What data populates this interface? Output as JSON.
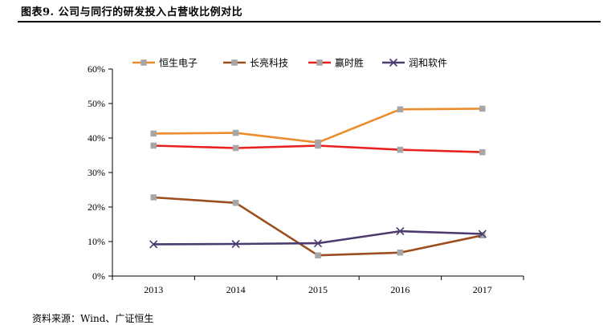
{
  "figure": {
    "title": "图表9. 公司与同行的研发投入占营收比例对比",
    "source": "资料来源：Wind、广证恒生"
  },
  "chart_data": {
    "type": "line",
    "title": "",
    "xlabel": "",
    "ylabel": "",
    "categories": [
      "2013",
      "2014",
      "2015",
      "2016",
      "2017"
    ],
    "ylim": [
      0,
      60
    ],
    "yticks": [
      0,
      10,
      20,
      30,
      40,
      50,
      60
    ],
    "ytick_format": "%",
    "grid": false,
    "legend_position": "top",
    "series": [
      {
        "name": "恒生电子",
        "color": "#ED8C2D",
        "marker": "square",
        "values": [
          41.3,
          41.5,
          38.7,
          48.3,
          48.5
        ]
      },
      {
        "name": "长亮科技",
        "color": "#9C4E1E",
        "marker": "square",
        "values": [
          22.8,
          21.2,
          6.0,
          6.8,
          11.8
        ]
      },
      {
        "name": "赢时胜",
        "color": "#E8201E",
        "marker": "square",
        "values": [
          37.8,
          37.1,
          37.8,
          36.6,
          35.9
        ]
      },
      {
        "name": "润和软件",
        "color": "#4B3B6E",
        "marker": "x",
        "values": [
          9.2,
          9.3,
          9.5,
          13.0,
          12.2
        ]
      }
    ]
  }
}
